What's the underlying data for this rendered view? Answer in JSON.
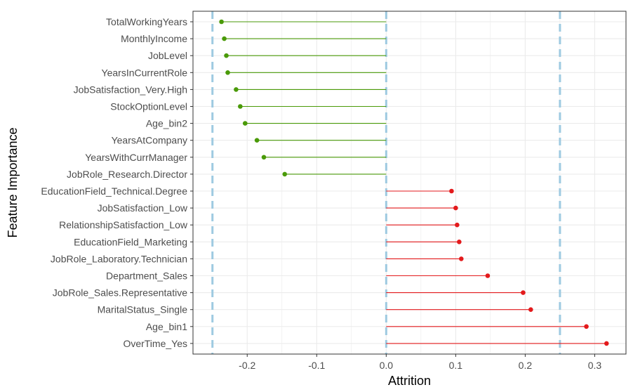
{
  "chart_data": {
    "type": "lollipop",
    "title": "",
    "xlabel": "Attrition",
    "ylabel": "Feature Importance",
    "xlim": [
      -0.278,
      0.345
    ],
    "x_ticks": [
      -0.2,
      -0.1,
      0.0,
      0.1,
      0.2,
      0.3
    ],
    "x_tick_labels": [
      "-0.2",
      "-0.1",
      "0.0",
      "0.1",
      "0.2",
      "0.3"
    ],
    "reference_lines": [
      -0.25,
      0.0,
      0.25
    ],
    "grid": true,
    "colors": {
      "negative": "#4a9a08",
      "positive": "#e31a1c",
      "reference": "#9ecae1",
      "grid": "#ebebeb",
      "panel_border": "#333333"
    },
    "features": [
      {
        "name": "TotalWorkingYears",
        "value": -0.237
      },
      {
        "name": "MonthlyIncome",
        "value": -0.233
      },
      {
        "name": "JobLevel",
        "value": -0.23
      },
      {
        "name": "YearsInCurrentRole",
        "value": -0.228
      },
      {
        "name": "JobSatisfaction_Very.High",
        "value": -0.216
      },
      {
        "name": "StockOptionLevel",
        "value": -0.21
      },
      {
        "name": "Age_bin2",
        "value": -0.203
      },
      {
        "name": "YearsAtCompany",
        "value": -0.186
      },
      {
        "name": "YearsWithCurrManager",
        "value": -0.176
      },
      {
        "name": "JobRole_Research.Director",
        "value": -0.146
      },
      {
        "name": "EducationField_Technical.Degree",
        "value": 0.094
      },
      {
        "name": "JobSatisfaction_Low",
        "value": 0.1
      },
      {
        "name": "RelationshipSatisfaction_Low",
        "value": 0.102
      },
      {
        "name": "EducationField_Marketing",
        "value": 0.105
      },
      {
        "name": "JobRole_Laboratory.Technician",
        "value": 0.108
      },
      {
        "name": "Department_Sales",
        "value": 0.146
      },
      {
        "name": "JobRole_Sales.Representative",
        "value": 0.197
      },
      {
        "name": "MaritalStatus_Single",
        "value": 0.208
      },
      {
        "name": "Age_bin1",
        "value": 0.288
      },
      {
        "name": "OverTime_Yes",
        "value": 0.317
      }
    ]
  }
}
